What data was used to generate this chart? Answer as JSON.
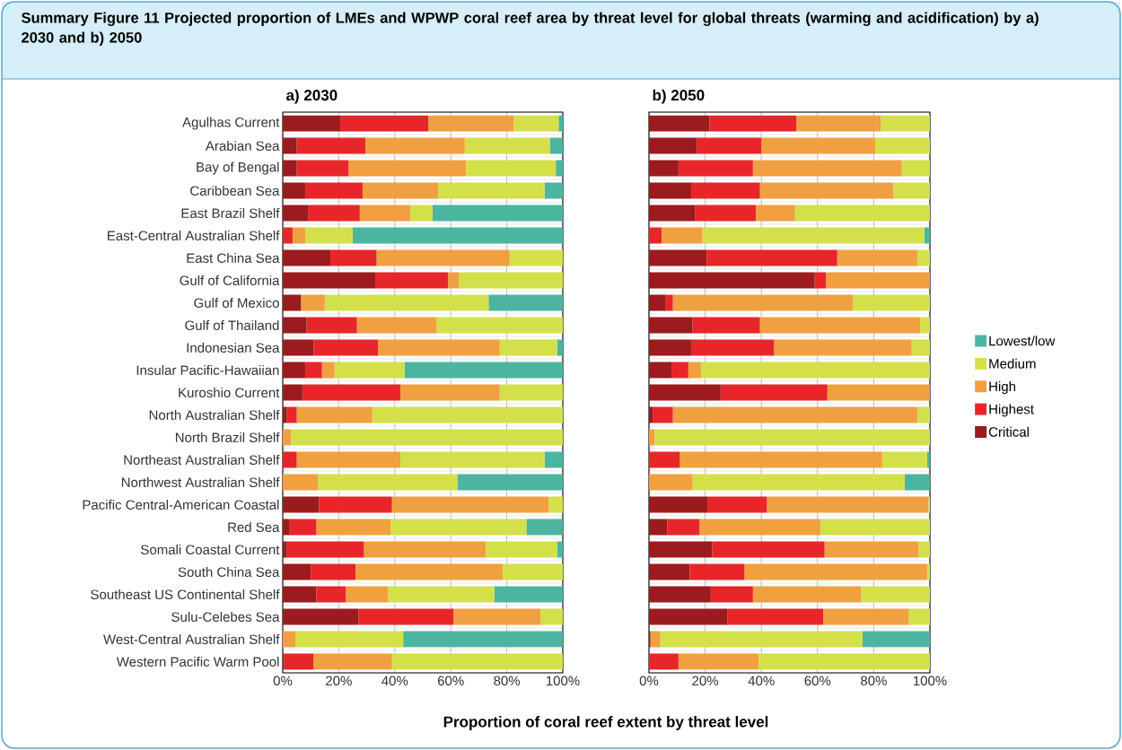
{
  "chart_data": [
    {
      "type": "bar",
      "orientation": "horizontal",
      "stacked": true,
      "title": "Summary Figure 11 Projected proportion of LMEs and WPWP coral reef area by threat level for global threats (warming and acidification) by a) 2030 and b) 2050",
      "subtitle": "a) 2030",
      "xlabel": "Proportion of coral reef extent by threat level",
      "categories": [
        "Agulhas Current",
        "Arabian Sea",
        "Bay of Bengal",
        "Caribbean Sea",
        "East Brazil Shelf",
        "East-Central Australian Shelf",
        "East China Sea",
        "Gulf of California",
        "Gulf of Mexico",
        "Gulf of Thailand",
        "Indonesian Sea",
        "Insular Pacific-Hawaiian",
        "Kuroshio Current",
        "North Australian Shelf",
        "North Brazil Shelf",
        "Northeast Australian Shelf",
        "Northwest Australian Shelf",
        "Pacific Central-American Coastal",
        "Red Sea",
        "Somali Coastal Current",
        "South China Sea",
        "Southeast US Continental Shelf",
        "Sulu-Celebes Sea",
        "West-Central Australian Shelf",
        "Western Pacific Warm Pool"
      ],
      "series": [
        {
          "color": "#9b1b1e",
          "values": [
            20.5,
            5,
            5,
            8,
            9,
            0,
            17,
            33,
            6.5,
            8.5,
            11,
            8,
            7,
            1.5,
            0,
            0,
            0,
            13,
            2.5,
            1.5,
            10,
            12,
            27,
            0,
            0.5
          ]
        },
        {
          "color": "#e8262a",
          "values": [
            31.5,
            24.5,
            18.5,
            20.5,
            18.5,
            3.5,
            16.5,
            26,
            0,
            18,
            23,
            6,
            35,
            3.5,
            0,
            5,
            0,
            26,
            9.5,
            27.5,
            16,
            10.5,
            34,
            0,
            10.5
          ]
        },
        {
          "color": "#f0a040",
          "values": [
            30.5,
            35.5,
            42,
            27,
            18,
            4.5,
            47.5,
            4,
            8.5,
            28.5,
            43.5,
            4.5,
            35.5,
            27,
            3,
            37,
            12.5,
            56,
            26.5,
            43.5,
            52.5,
            15,
            31,
            4.5,
            28
          ]
        },
        {
          "color": "#d4e04a",
          "values": [
            16,
            30.5,
            32,
            38,
            8,
            17,
            19,
            37,
            58.5,
            45,
            20.5,
            25,
            22.5,
            68,
            97,
            51.5,
            50,
            5,
            48.5,
            25.5,
            21.5,
            38,
            8,
            38.5,
            61
          ]
        },
        {
          "color": "#4bb5a0",
          "values": [
            1.5,
            4.5,
            2.5,
            6.5,
            46.5,
            75,
            0,
            0,
            26.5,
            0,
            2,
            56.5,
            0,
            0,
            0,
            6.5,
            37.5,
            0,
            13,
            2,
            0,
            24.5,
            0,
            57,
            0
          ]
        }
      ],
      "xlim": [
        0,
        100
      ],
      "xticks": [
        {
          "value": 0,
          "label": "0%"
        },
        {
          "value": 20,
          "label": "20%"
        },
        {
          "value": 40,
          "label": "40%"
        },
        {
          "value": 60,
          "label": "60%"
        },
        {
          "value": 80,
          "label": "80%"
        },
        {
          "value": 100,
          "label": "100%"
        }
      ],
      "grid": true
    },
    {
      "type": "bar",
      "orientation": "horizontal",
      "stacked": true,
      "subtitle": "b) 2050",
      "categories": [
        null,
        null,
        null,
        null,
        null,
        null,
        null,
        null,
        null,
        null,
        null,
        null,
        null,
        null,
        null,
        null,
        null,
        null,
        null,
        null,
        null,
        null,
        null,
        null,
        null
      ],
      "series": [
        {
          "name": "Critical",
          "color": "#9b1b1e",
          "values": [
            21.5,
            17,
            10.5,
            15,
            16.5,
            0,
            20.5,
            59,
            6,
            15.5,
            15,
            8,
            25.5,
            1.5,
            0,
            0,
            0,
            21,
            6.5,
            22.5,
            14.5,
            22,
            28,
            0.5,
            0
          ]
        },
        {
          "name": "Highest",
          "color": "#e8262a",
          "values": [
            31,
            23,
            26.5,
            24.5,
            21.5,
            4.5,
            46.5,
            4,
            2.5,
            24,
            29.5,
            6,
            38,
            7,
            0,
            11,
            0,
            21,
            11.5,
            40,
            19.5,
            15,
            34,
            0,
            10.5
          ]
        },
        {
          "name": "High",
          "color": "#f0a040",
          "values": [
            30,
            40.5,
            53,
            47.5,
            14,
            14.5,
            28.5,
            37,
            64,
            57,
            49,
            4.5,
            36.5,
            87,
            2,
            72,
            15.5,
            57.5,
            43,
            33.5,
            65,
            38.5,
            30.5,
            3.5,
            28.5
          ]
        },
        {
          "name": "Medium",
          "color": "#d4e04a",
          "values": [
            17.5,
            19.5,
            10,
            13,
            48,
            79,
            4.5,
            0,
            27.5,
            3.5,
            6.5,
            81.5,
            0,
            4.5,
            98,
            16,
            75.5,
            0.5,
            39,
            4,
            1,
            24.5,
            7.5,
            72,
            61
          ]
        },
        {
          "name": "Lowest/low",
          "color": "#4bb5a0",
          "values": [
            0,
            0,
            0,
            0,
            0,
            2,
            0,
            0,
            0,
            0,
            0,
            0,
            0,
            0,
            0,
            1,
            9,
            0,
            0,
            0,
            0,
            0,
            0,
            24,
            0
          ]
        }
      ],
      "xlim": [
        0,
        100
      ],
      "xticks": [
        {
          "value": 0,
          "label": "0%"
        },
        {
          "value": 20,
          "label": "20%"
        },
        {
          "value": 40,
          "label": "40%"
        },
        {
          "value": 60,
          "label": "60%"
        },
        {
          "value": 80,
          "label": "80%"
        },
        {
          "value": 100,
          "label": "100%"
        }
      ],
      "grid": true,
      "legend": "right"
    }
  ]
}
